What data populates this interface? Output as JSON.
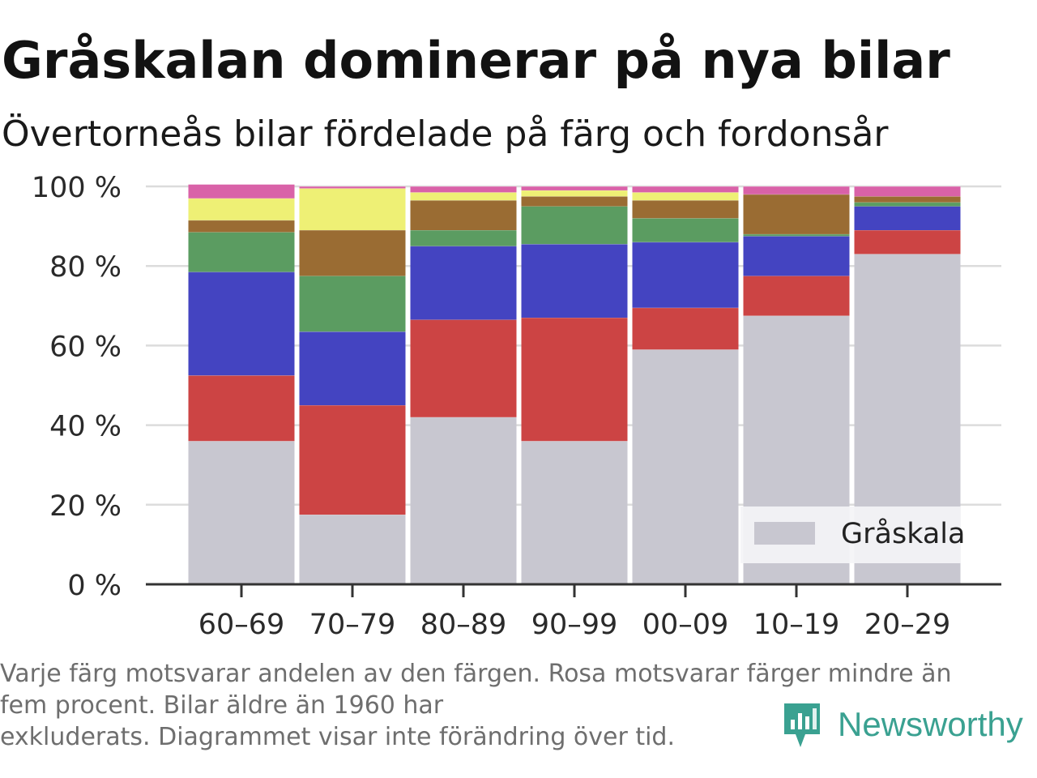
{
  "title": "Gråskalan dominerar på nya bilar",
  "subtitle": "Övertorneås bilar fördelade på färg och fordonsår",
  "footnote": [
    "Varje färg motsvarar andelen av den färgen. Rosa motsvarar färger mindre än",
    "fem procent. Bilar äldre än 1960 har",
    "exkluderats. Diagrammet visar inte förändring över tid."
  ],
  "brand": {
    "name": "Newsworthy",
    "icon": "newsworthy-chart-icon",
    "color": "#3aa191"
  },
  "legend": {
    "label": "Gråskala",
    "position": "bottom-right"
  },
  "chart_data": {
    "type": "bar",
    "stacked": true,
    "categories": [
      "60–69",
      "70–79",
      "80–89",
      "90–99",
      "00–09",
      "10–19",
      "20–29"
    ],
    "ylim": [
      0,
      100
    ],
    "yticks": [
      0,
      20,
      40,
      60,
      80,
      100
    ],
    "ytick_labels": [
      "0 %",
      "20 %",
      "40 %",
      "60 %",
      "80 %",
      "100 %"
    ],
    "grid": true,
    "series": [
      {
        "name": "Gråskala",
        "color": "#c8c7d0",
        "values": [
          36,
          17.5,
          42,
          36,
          59,
          67.5,
          83
        ]
      },
      {
        "color": "#cc4444",
        "values": [
          16.5,
          27.5,
          24.5,
          31,
          10.5,
          10,
          6
        ]
      },
      {
        "color": "#4444c1",
        "values": [
          26,
          18.5,
          18.5,
          18.5,
          16.5,
          10,
          6
        ]
      },
      {
        "color": "#5b9c61",
        "values": [
          10,
          14,
          4,
          9.5,
          6,
          0.5,
          1
        ]
      },
      {
        "color": "#9a6c33",
        "values": [
          3,
          11.5,
          7.5,
          2.5,
          4.5,
          10,
          1.5
        ]
      },
      {
        "color": "#eef075",
        "values": [
          5.5,
          10.5,
          2,
          1.5,
          2,
          0,
          0
        ]
      },
      {
        "color": "#d962a8",
        "values": [
          3.5,
          0.5,
          1.5,
          1,
          1.5,
          2,
          2.5
        ]
      }
    ]
  }
}
